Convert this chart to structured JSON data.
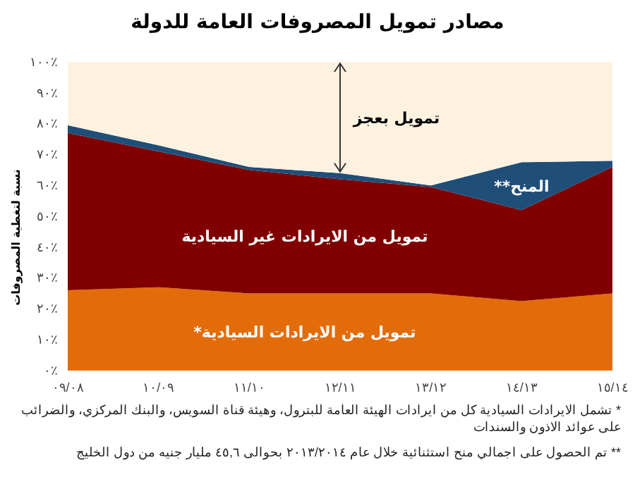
{
  "chart_data": {
    "type": "area",
    "stacked": true,
    "title": "مصادر تمويل المصروفات العامة للدولة",
    "ylabel": "نسبة لتغطية المصروفات",
    "categories": [
      "٠٩/٠٨",
      "١٠/٠٩",
      "١١/١٠",
      "١٢/١١",
      "١٣/١٢",
      "١٤/١٣",
      "١٥/١٤"
    ],
    "series": [
      {
        "name": "تمويل من الايرادات السيادية*",
        "color": "#e36c0a",
        "values": [
          26,
          27,
          25,
          25,
          25,
          22.5,
          25
        ]
      },
      {
        "name": "تمويل من الايرادات غير السيادية",
        "color": "#800000",
        "values": [
          51,
          44,
          40,
          37,
          34.5,
          29.5,
          41
        ]
      },
      {
        "name": "المنح**",
        "color": "#1f4e79",
        "values": [
          2.5,
          2,
          1,
          2,
          0.5,
          15.5,
          2
        ]
      },
      {
        "name": "تمويل بعجز",
        "color": "#fdf2e0",
        "values": [
          20.5,
          27,
          34,
          36,
          40,
          32.5,
          32
        ]
      }
    ],
    "ylim": [
      0,
      100
    ],
    "yticks": [
      {
        "value": 0,
        "label": "٠٪"
      },
      {
        "value": 10,
        "label": "١٠٪"
      },
      {
        "value": 20,
        "label": "٢٠٪"
      },
      {
        "value": 30,
        "label": "٣٠٪"
      },
      {
        "value": 40,
        "label": "٤٠٪"
      },
      {
        "value": 50,
        "label": "٥٠٪"
      },
      {
        "value": 60,
        "label": "٦٠٪"
      },
      {
        "value": 70,
        "label": "٧٠٪"
      },
      {
        "value": 80,
        "label": "٨٠٪"
      },
      {
        "value": 90,
        "label": "٩٠٪"
      },
      {
        "value": 100,
        "label": "١٠٠٪"
      }
    ],
    "grid": false,
    "annotations": [
      "* تشمل الايرادات السيادية كل من ايرادات الهيئة العامة للبترول، وهيئة قناة السويس، والبنك المركزي، والضرائب على عوائد الاذون والسندات",
      "** تم الحصول على اجمالي منح استثنائية خلال عام ٢٠١٣/٢٠١٤ بحوالى ٤٥,٦ مليار جنيه من دول الخليج"
    ]
  }
}
